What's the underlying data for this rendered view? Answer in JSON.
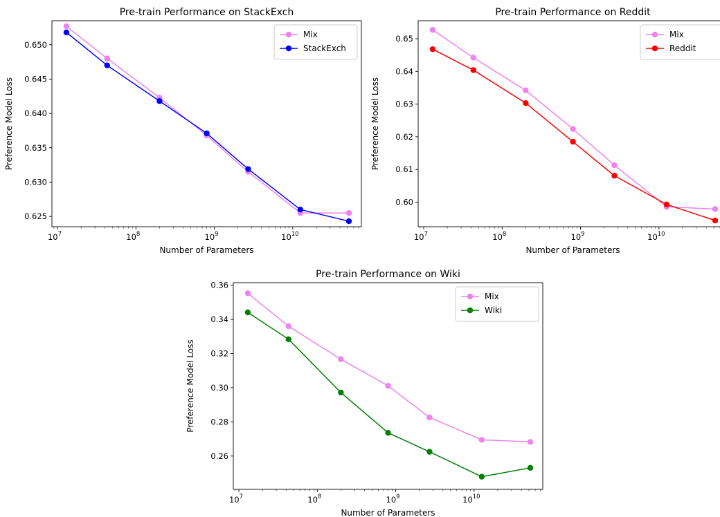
{
  "chart_data": [
    {
      "type": "line",
      "title": "Pre-train Performance on StackExch",
      "xlabel": "Number of Parameters",
      "ylabel": "Preference Model Loss",
      "xscale": "log",
      "xlim": [
        8500000.0,
        75000000000.0
      ],
      "ylim": [
        0.6235,
        0.6535
      ],
      "yticks": [
        0.625,
        0.63,
        0.635,
        0.64,
        0.645,
        0.65
      ],
      "ytick_labels": [
        "0.625",
        "0.630",
        "0.635",
        "0.640",
        "0.645",
        "0.650"
      ],
      "xticks": [
        10000000.0,
        100000000.0,
        1000000000.0,
        10000000000.0
      ],
      "xtick_labels": [
        "10^7",
        "10^8",
        "10^9",
        "10^10"
      ],
      "legend": "top-right",
      "grid": false,
      "x": [
        13000000.0,
        43000000.0,
        200000000.0,
        800000000.0,
        2700000000.0,
        12500000000.0,
        52000000000.0
      ],
      "series": [
        {
          "name": "Mix",
          "color": "#ee82ee",
          "values": [
            0.6527,
            0.648,
            0.6423,
            0.6368,
            0.6315,
            0.6255,
            0.6255
          ]
        },
        {
          "name": "StackExch",
          "color": "#0000ff",
          "values": [
            0.6518,
            0.647,
            0.6418,
            0.6371,
            0.6319,
            0.626,
            0.6243
          ]
        }
      ]
    },
    {
      "type": "line",
      "title": "Pre-train Performance on Reddit",
      "xlabel": "Number of Parameters",
      "ylabel": "Preference Model Loss",
      "xscale": "log",
      "xlim": [
        8500000.0,
        75000000000.0
      ],
      "ylim": [
        0.5925,
        0.6555
      ],
      "yticks": [
        0.6,
        0.61,
        0.62,
        0.63,
        0.64,
        0.65
      ],
      "ytick_labels": [
        "0.60",
        "0.61",
        "0.62",
        "0.63",
        "0.64",
        "0.65"
      ],
      "xticks": [
        10000000.0,
        100000000.0,
        1000000000.0,
        10000000000.0
      ],
      "xtick_labels": [
        "10^7",
        "10^8",
        "10^9",
        "10^10"
      ],
      "legend": "top-right",
      "grid": false,
      "x": [
        13000000.0,
        43000000.0,
        200000000.0,
        800000000.0,
        2700000000.0,
        12500000000.0,
        52000000000.0
      ],
      "series": [
        {
          "name": "Mix",
          "color": "#ee82ee",
          "values": [
            0.6527,
            0.6442,
            0.6342,
            0.6224,
            0.6113,
            0.5986,
            0.5979
          ]
        },
        {
          "name": "Reddit",
          "color": "#ff0000",
          "values": [
            0.6468,
            0.6404,
            0.6303,
            0.6185,
            0.6081,
            0.5993,
            0.5944
          ]
        }
      ]
    },
    {
      "type": "line",
      "title": "Pre-train Performance on Wiki",
      "xlabel": "Number of Parameters",
      "ylabel": "Preference Model Loss",
      "xscale": "log",
      "xlim": [
        8500000.0,
        75000000000.0
      ],
      "ylim": [
        0.2405,
        0.3615
      ],
      "yticks": [
        0.26,
        0.28,
        0.3,
        0.32,
        0.34,
        0.36
      ],
      "ytick_labels": [
        "0.26",
        "0.28",
        "0.30",
        "0.32",
        "0.34",
        "0.36"
      ],
      "xticks": [
        10000000.0,
        100000000.0,
        1000000000.0,
        10000000000.0
      ],
      "xtick_labels": [
        "10^7",
        "10^8",
        "10^9",
        "10^10"
      ],
      "legend": "top-right",
      "grid": false,
      "x": [
        13000000.0,
        43000000.0,
        200000000.0,
        800000000.0,
        2700000000.0,
        12500000000.0,
        52000000000.0
      ],
      "series": [
        {
          "name": "Mix",
          "color": "#ee82ee",
          "values": [
            0.3553,
            0.336,
            0.3167,
            0.3011,
            0.2826,
            0.2695,
            0.2683
          ]
        },
        {
          "name": "Wiki",
          "color": "#008000",
          "values": [
            0.3441,
            0.3284,
            0.2972,
            0.2736,
            0.2625,
            0.2479,
            0.2531
          ]
        }
      ]
    }
  ]
}
